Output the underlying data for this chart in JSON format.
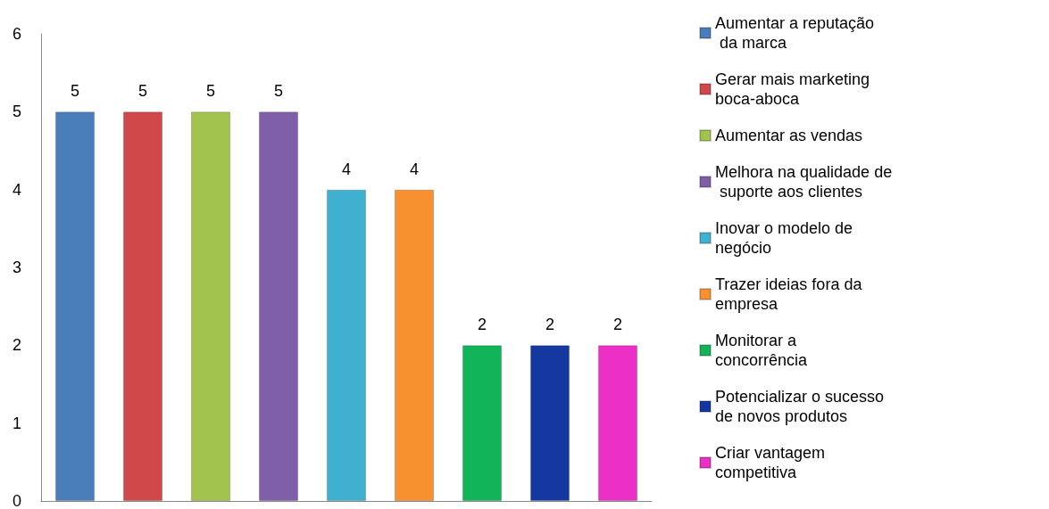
{
  "chart_data": {
    "type": "bar",
    "categories": [
      null,
      null,
      null,
      null,
      null,
      null,
      null,
      null,
      null
    ],
    "series": [
      {
        "name": "Aumentar a reputação da marca",
        "color": "#4a7ebb",
        "values": [
          5,
          null,
          null,
          null,
          null,
          null,
          null,
          null,
          null
        ]
      },
      {
        "name": "Gerar mais marketing boca-aboca",
        "color": "#d0484a",
        "values": [
          null,
          5,
          null,
          null,
          null,
          null,
          null,
          null,
          null
        ]
      },
      {
        "name": "Aumentar as vendas",
        "color": "#a2c44e",
        "values": [
          null,
          null,
          5,
          null,
          null,
          null,
          null,
          null,
          null
        ]
      },
      {
        "name": "Melhora na qualidade de suporte aos clientes",
        "color": "#7f5fa8",
        "values": [
          null,
          null,
          null,
          5,
          null,
          null,
          null,
          null,
          null
        ]
      },
      {
        "name": "Inovar o modelo de negócio",
        "color": "#3fb0cf",
        "values": [
          null,
          null,
          null,
          null,
          4,
          null,
          null,
          null,
          null
        ]
      },
      {
        "name": "Trazer ideias fora da empresa",
        "color": "#f7902f",
        "values": [
          null,
          null,
          null,
          null,
          null,
          4,
          null,
          null,
          null
        ]
      },
      {
        "name": "Monitorar a concorrência",
        "color": "#12b45a",
        "values": [
          null,
          null,
          null,
          null,
          null,
          null,
          2,
          null,
          null
        ]
      },
      {
        "name": "Potencializar o sucesso de novos produtos",
        "color": "#1538a0",
        "values": [
          null,
          null,
          null,
          null,
          null,
          null,
          null,
          2,
          null
        ]
      },
      {
        "name": "Criar vantagem competitiva",
        "color": "#ec2fc6",
        "values": [
          null,
          null,
          null,
          null,
          null,
          null,
          null,
          null,
          2
        ]
      }
    ],
    "ylim": [
      0,
      6
    ],
    "yticks": [
      0,
      1,
      2,
      3,
      4,
      5,
      6
    ],
    "grid": false,
    "legend": "right",
    "data_labels": true
  }
}
